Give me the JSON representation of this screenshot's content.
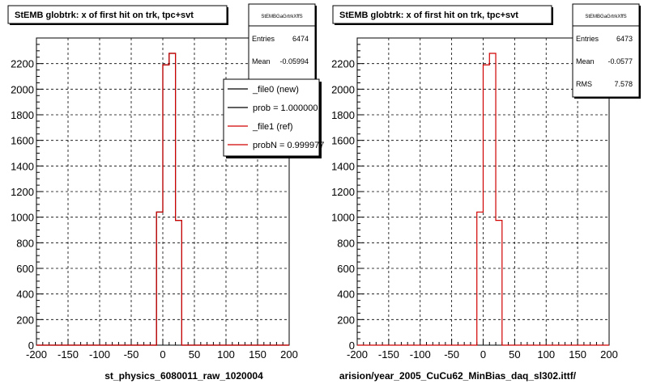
{
  "colors": {
    "new_hist": "#000000",
    "ref_hist": "#d00000",
    "grid": "#000000",
    "frame": "#000000"
  },
  "chart_data": [
    {
      "type": "bar",
      "title": "StEMB globtrk: x of first hit on trk, tpc+svt",
      "x_bin_edges": [
        -200,
        -190,
        -180,
        -170,
        -160,
        -150,
        -140,
        -130,
        -120,
        -110,
        -100,
        -90,
        -80,
        -70,
        -60,
        -50,
        -40,
        -30,
        -20,
        -10,
        0,
        10,
        20,
        30,
        40,
        50,
        60,
        70,
        80,
        90,
        100,
        110,
        120,
        130,
        140,
        150,
        160,
        170,
        180,
        190,
        200
      ],
      "xlim": [
        -200,
        200
      ],
      "ylim": [
        0,
        2400
      ],
      "x_ticks": [
        "-200",
        "-150",
        "-100",
        "-50",
        "0",
        "50",
        "100",
        "150",
        "200"
      ],
      "y_ticks": [
        "0",
        "200",
        "400",
        "600",
        "800",
        "1000",
        "1200",
        "1400",
        "1600",
        "1800",
        "2000",
        "2200"
      ],
      "grid": true,
      "series": [
        {
          "name": "_file0 (new)",
          "color": "#000000",
          "values": [
            0,
            0,
            0,
            0,
            0,
            0,
            0,
            0,
            0,
            0,
            0,
            0,
            0,
            0,
            0,
            0,
            0,
            0,
            0,
            1040,
            2190,
            2280,
            975,
            0,
            0,
            0,
            0,
            0,
            0,
            0,
            0,
            0,
            0,
            0,
            0,
            0,
            0,
            0,
            0,
            0
          ]
        },
        {
          "name": "_file1 (ref)",
          "color": "#d00000",
          "values": [
            0,
            0,
            0,
            0,
            0,
            0,
            0,
            0,
            0,
            0,
            0,
            0,
            0,
            0,
            0,
            0,
            0,
            0,
            0,
            1040,
            2190,
            2280,
            975,
            0,
            0,
            0,
            0,
            0,
            0,
            0,
            0,
            0,
            0,
            0,
            0,
            0,
            0,
            0,
            0,
            0
          ]
        }
      ],
      "stats": {
        "name": "StEMBGaGrtrkXffS",
        "rows": [
          {
            "label": "Entries",
            "value": "6474"
          },
          {
            "label": "Mean",
            "value": "-0.05994"
          }
        ]
      },
      "legend": {
        "position": "top-right",
        "entries": [
          {
            "label": "_file0 (new)",
            "color": "#000000"
          },
          {
            "label": "prob = 1.000000",
            "color": "#000000"
          },
          {
            "label": "_file1 (ref)",
            "color": "#d00000"
          },
          {
            "label": "probN = 0.999977",
            "color": "#d00000"
          }
        ]
      },
      "footer": "st_physics_6080011_raw_1020004"
    },
    {
      "type": "bar",
      "title": "StEMB globtrk: x of first hit on trk, tpc+svt",
      "x_bin_edges": [
        -200,
        -190,
        -180,
        -170,
        -160,
        -150,
        -140,
        -130,
        -120,
        -110,
        -100,
        -90,
        -80,
        -70,
        -60,
        -50,
        -40,
        -30,
        -20,
        -10,
        0,
        10,
        20,
        30,
        40,
        50,
        60,
        70,
        80,
        90,
        100,
        110,
        120,
        130,
        140,
        150,
        160,
        170,
        180,
        190,
        200
      ],
      "xlim": [
        -200,
        200
      ],
      "ylim": [
        0,
        2400
      ],
      "x_ticks": [
        "-200",
        "-150",
        "-100",
        "-50",
        "0",
        "50",
        "100",
        "150",
        "200"
      ],
      "y_ticks": [
        "0",
        "200",
        "400",
        "600",
        "800",
        "1000",
        "1200",
        "1400",
        "1600",
        "1800",
        "2000",
        "2200"
      ],
      "grid": true,
      "series": [
        {
          "name": "",
          "color": "#d00000",
          "values": [
            0,
            0,
            0,
            0,
            0,
            0,
            0,
            0,
            0,
            0,
            0,
            0,
            0,
            0,
            0,
            0,
            0,
            0,
            0,
            1040,
            2190,
            2280,
            975,
            0,
            0,
            0,
            0,
            0,
            0,
            0,
            0,
            0,
            0,
            0,
            0,
            0,
            0,
            0,
            0,
            0
          ]
        }
      ],
      "stats": {
        "name": "StEMBGaGrtrkXffS",
        "rows": [
          {
            "label": "Entries",
            "value": "6473"
          },
          {
            "label": "Mean",
            "value": "-0.0577"
          },
          {
            "label": "RMS",
            "value": "7.578"
          }
        ]
      },
      "legend": null,
      "footer": "arision/year_2005_CuCu62_MinBias_daq_sl302.ittf/"
    }
  ]
}
